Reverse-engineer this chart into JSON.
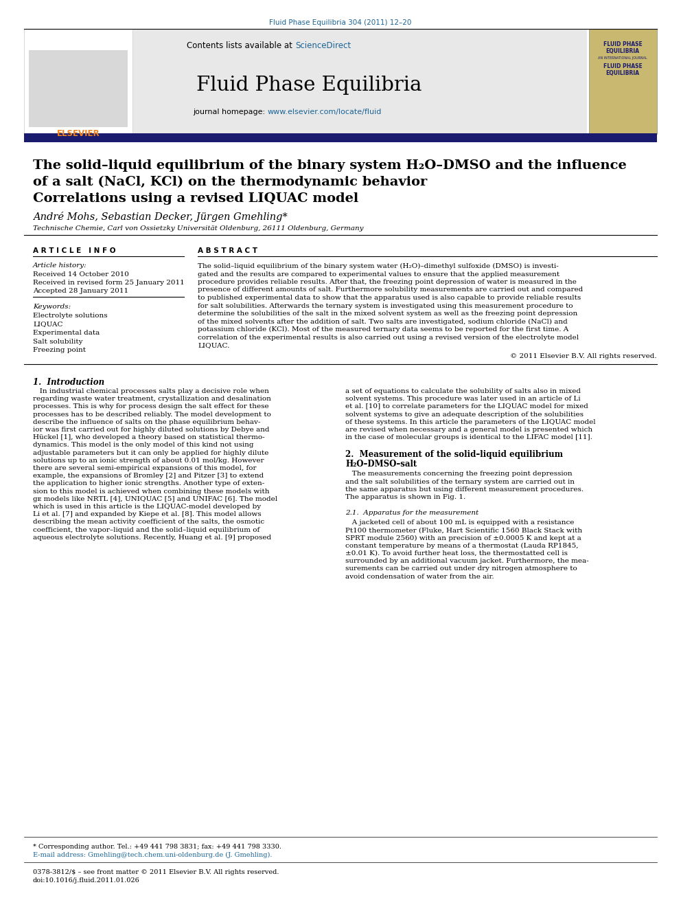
{
  "journal_ref": "Fluid Phase Equilibria 304 (2011) 12–20",
  "sciencedirect_color": "#1a6496",
  "journal_name": "Fluid Phase Equilibria",
  "homepage_url": "www.elsevier.com/locate/fluid",
  "title_line1": "The solid–liquid equilibrium of the binary system H₂O–DMSO and the influence",
  "title_line2": "of a salt (NaCl, KCl) on the thermodynamic behavior",
  "title_line3": "Correlations using a revised LIQUAC model",
  "authors": "André Mohs, Sebastian Decker, Jürgen Gmehling*",
  "affiliation": "Technische Chemie, Carl von Ossietzky Universität Oldenburg, 26111 Oldenburg, Germany",
  "section_article_info": "A R T I C L E   I N F O",
  "section_abstract": "A B S T R A C T",
  "article_history_label": "Article history:",
  "received1": "Received 14 October 2010",
  "received2": "Received in revised form 25 January 2011",
  "accepted": "Accepted 28 January 2011",
  "keywords_label": "Keywords:",
  "keywords": [
    "Electrolyte solutions",
    "LIQUAC",
    "Experimental data",
    "Salt solubility",
    "Freezing point"
  ],
  "abstract_lines": [
    "The solid–liquid equilibrium of the binary system water (H₂O)–dimethyl sulfoxide (DMSO) is investi-",
    "gated and the results are compared to experimental values to ensure that the applied measurement",
    "procedure provides reliable results. After that, the freezing point depression of water is measured in the",
    "presence of different amounts of salt. Furthermore solubility measurements are carried out and compared",
    "to published experimental data to show that the apparatus used is also capable to provide reliable results",
    "for salt solubilities. Afterwards the ternary system is investigated using this measurement procedure to",
    "determine the solubilities of the salt in the mixed solvent system as well as the freezing point depression",
    "of the mixed solvents after the addition of salt. Two salts are investigated, sodium chloride (NaCl) and",
    "potassium chloride (KCl). Most of the measured ternary data seems to be reported for the first time. A",
    "correlation of the experimental results is also carried out using a revised version of the electrolyte model",
    "LIQUAC."
  ],
  "copyright": "© 2011 Elsevier B.V. All rights reserved.",
  "section1_title": "1.  Introduction",
  "intro_left_lines": [
    "   In industrial chemical processes salts play a decisive role when",
    "regarding waste water treatment, crystallization and desalination",
    "processes. This is why for process design the salt effect for these",
    "processes has to be described reliably. The model development to",
    "describe the influence of salts on the phase equilibrium behav-",
    "ior was first carried out for highly diluted solutions by Debye and",
    "Hückel [1], who developed a theory based on statistical thermo-",
    "dynamics. This model is the only model of this kind not using",
    "adjustable parameters but it can only be applied for highly dilute",
    "solutions up to an ionic strength of about 0.01 mol/kg. However",
    "there are several semi-empirical expansions of this model, for",
    "example, the expansions of Bromley [2] and Pitzer [3] to extend",
    "the application to higher ionic strengths. Another type of exten-",
    "sion to this model is achieved when combining these models with",
    "gᴇ models like NRTL [4], UNIQUAC [5] and UNIFAC [6]. The model",
    "which is used in this article is the LIQUAC-model developed by",
    "Li et al. [7] and expanded by Kiepe et al. [8]. This model allows",
    "describing the mean activity coefficient of the salts, the osmotic",
    "coefficient, the vapor–liquid and the solid–liquid equilibrium of",
    "aqueous electrolyte solutions. Recently, Huang et al. [9] proposed"
  ],
  "intro_right_lines": [
    "a set of equations to calculate the solubility of salts also in mixed",
    "solvent systems. This procedure was later used in an article of Li",
    "et al. [10] to correlate parameters for the LIQUAC model for mixed",
    "solvent systems to give an adequate description of the solubilities",
    "of these systems. In this article the parameters of the LIQUAC model",
    "are revised when necessary and a general model is presented which",
    "in the case of molecular groups is identical to the LIFAC model [11]."
  ],
  "section2_title": "2.  Measurement of the solid–liquid equilibrium",
  "section2_subtitle": "H₂O–DMSO–salt",
  "section2_lines": [
    "   The measurements concerning the freezing point depression",
    "and the salt solubilities of the ternary system are carried out in",
    "the same apparatus but using different measurement procedures.",
    "The apparatus is shown in Fig. 1."
  ],
  "section21_title": "2.1.  Apparatus for the measurement",
  "section21_lines": [
    "   A jacketed cell of about 100 mL is equipped with a resistance",
    "Pt100 thermometer (Fluke, Hart Scientific 1560 Black Stack with",
    "SPRT module 2560) with an precision of ±0.0005 K and kept at a",
    "constant temperature by means of a thermostat (Lauda RP1845,",
    "±0.01 K). To avoid further heat loss, the thermostatted cell is",
    "surrounded by an additional vacuum jacket. Furthermore, the mea-",
    "surements can be carried out under dry nitrogen atmosphere to",
    "avoid condensation of water from the air."
  ],
  "footnote_star": "* Corresponding author. Tel.: +49 441 798 3831; fax: +49 441 798 3330.",
  "footnote_email": "E-mail address: Gmehling@tech.chem.uni-oldenburg.de (J. Gmehling).",
  "footer_issn": "0378-3812/$ – see front matter © 2011 Elsevier B.V. All rights reserved.",
  "footer_doi": "doi:10.1016/j.fluid.2011.01.026",
  "header_bar_color": "#1a1a6e",
  "elsevier_orange": "#f0821e",
  "background_color": "#ffffff",
  "header_bg": "#e8e8e8",
  "journal_cover_bg": "#c8b870"
}
